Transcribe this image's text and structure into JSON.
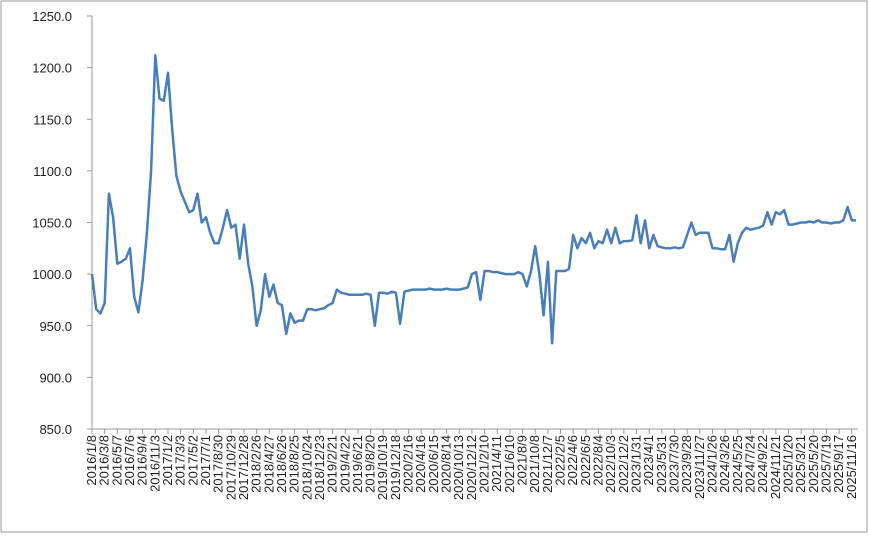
{
  "chart_data": {
    "type": "line",
    "color": "#4a7ebb",
    "categories": [
      "2016/1/8",
      null,
      null,
      "2016/3/8",
      null,
      null,
      "2016/5/7",
      null,
      null,
      "2016/7/6",
      null,
      null,
      "2016/9/4",
      null,
      null,
      "2016/11/3",
      null,
      null,
      "2017/1/2",
      null,
      null,
      "2017/3/3",
      null,
      null,
      "2017/5/2",
      null,
      null,
      "2017/7/1",
      null,
      null,
      "2017/8/30",
      null,
      null,
      "2017/10/29",
      null,
      null,
      "2017/12/28",
      null,
      null,
      "2018/2/26",
      null,
      null,
      "2018/4/27",
      null,
      null,
      "2018/6/26",
      null,
      null,
      "2018/8/25",
      null,
      null,
      "2018/10/24",
      null,
      null,
      "2018/12/23",
      null,
      null,
      "2019/2/21",
      null,
      null,
      "2019/4/22",
      null,
      null,
      "2019/6/21",
      null,
      null,
      "2019/8/20",
      null,
      null,
      "2019/10/19",
      null,
      null,
      "2019/12/18",
      null,
      null,
      "2020/2/16",
      null,
      null,
      "2020/4/16",
      null,
      null,
      "2020/6/15",
      null,
      null,
      "2020/8/14",
      null,
      null,
      "2020/10/13",
      null,
      null,
      "2020/12/12",
      null,
      null,
      "2021/2/10",
      null,
      null,
      "2021/4/11",
      null,
      null,
      "2021/6/10",
      null,
      null,
      "2021/8/9",
      null,
      null,
      "2021/10/8",
      null,
      null,
      "2021/12/7",
      null,
      null,
      "2022/2/5",
      null,
      null,
      "2022/4/6",
      null,
      null,
      "2022/6/5",
      null,
      null,
      "2022/8/4",
      null,
      null,
      "2022/10/3",
      null,
      null,
      "2022/12/2",
      null,
      null,
      "2023/1/31",
      null,
      null,
      "2023/4/1",
      null,
      null,
      "2023/5/31",
      null,
      null,
      "2023/7/30",
      null,
      null,
      "2023/9/28",
      null,
      null,
      "2023/11/27",
      null,
      null,
      "2024/1/26",
      null,
      null,
      "2024/3/26",
      null,
      null,
      "2024/5/25",
      null,
      null,
      "2024/7/24",
      null,
      null,
      "2024/9/22",
      null,
      null,
      "2024/11/21",
      null,
      null,
      "2025/1/20",
      null,
      null,
      "2025/3/21",
      null,
      null,
      "2025/5/20",
      null,
      null,
      "2025/7/19",
      null,
      null,
      "2025/9/17",
      null,
      null,
      "2025/11/16",
      null
    ],
    "values": [
      1000,
      966,
      962,
      972,
      1078,
      1055,
      1010,
      1012,
      1015,
      1025,
      978,
      963,
      995,
      1040,
      1100,
      1212,
      1170,
      1168,
      1195,
      1140,
      1095,
      1080,
      1070,
      1060,
      1062,
      1078,
      1050,
      1055,
      1040,
      1030,
      1030,
      1045,
      1062,
      1045,
      1048,
      1015,
      1048,
      1010,
      988,
      950,
      965,
      1000,
      978,
      990,
      972,
      970,
      942,
      962,
      953,
      955,
      955,
      966,
      966,
      965,
      966,
      967,
      970,
      972,
      985,
      982,
      981,
      980,
      980,
      980,
      980,
      981,
      980,
      950,
      982,
      982,
      981,
      983,
      982,
      952,
      983,
      984,
      985,
      985,
      985,
      985,
      986,
      985,
      985,
      985,
      986,
      985,
      985,
      985,
      986,
      987,
      1000,
      1002,
      975,
      1003,
      1003,
      1002,
      1002,
      1001,
      1000,
      1000,
      1000,
      1002,
      1000,
      988,
      1003,
      1027,
      1000,
      960,
      1012,
      933,
      1003,
      1003,
      1003,
      1005,
      1038,
      1025,
      1035,
      1030,
      1040,
      1025,
      1032,
      1030,
      1043,
      1030,
      1045,
      1030,
      1032,
      1032,
      1033,
      1057,
      1030,
      1052,
      1025,
      1038,
      1027,
      1026,
      1025,
      1025,
      1026,
      1025,
      1026,
      1038,
      1050,
      1038,
      1040,
      1040,
      1040,
      1025,
      1025,
      1024,
      1024,
      1038,
      1012,
      1030,
      1040,
      1045,
      1043,
      1044,
      1045,
      1047,
      1060,
      1048,
      1060,
      1058,
      1062,
      1048,
      1048,
      1049,
      1050,
      1050,
      1051,
      1050,
      1052,
      1050,
      1050,
      1049,
      1050,
      1050,
      1052,
      1065,
      1052,
      1052
    ],
    "ylim": [
      850,
      1250
    ],
    "yticks": [
      {
        "value": 850,
        "label": "850.0"
      },
      {
        "value": 900,
        "label": "900.0"
      },
      {
        "value": 950,
        "label": "950.0"
      },
      {
        "value": 1000,
        "label": "1000.0"
      },
      {
        "value": 1050,
        "label": "1050.0"
      },
      {
        "value": 1100,
        "label": "1100.0"
      },
      {
        "value": 1150,
        "label": "1150.0"
      },
      {
        "value": 1200,
        "label": "1200.0"
      },
      {
        "value": 1250,
        "label": "1250.0"
      }
    ]
  }
}
